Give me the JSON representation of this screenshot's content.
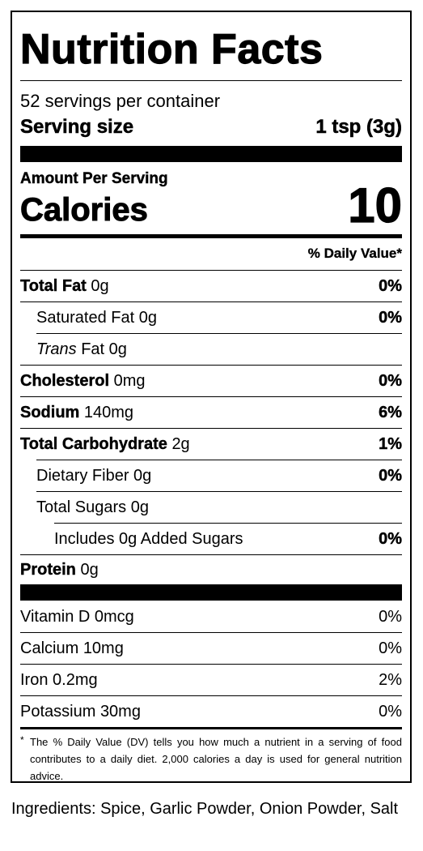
{
  "title": "Nutrition Facts",
  "servings_per_container": "52 servings per container",
  "serving_size_label": "Serving size",
  "serving_size_value": "1 tsp (3g)",
  "amount_per_serving": "Amount Per Serving",
  "calories_label": "Calories",
  "calories_value": "10",
  "daily_value_header": "% Daily Value*",
  "nutrients": [
    {
      "name": "Total Fat",
      "amount": "0g",
      "dv": "0%"
    },
    {
      "name": "Saturated Fat",
      "amount": "0g",
      "dv": "0%"
    },
    {
      "name": "Trans",
      "name_suffix": "Fat",
      "amount": "0g",
      "dv": ""
    },
    {
      "name": "Cholesterol",
      "amount": "0mg",
      "dv": "0%"
    },
    {
      "name": "Sodium",
      "amount": "140mg",
      "dv": "6%"
    },
    {
      "name": "Total Carbohydrate",
      "amount": "2g",
      "dv": "1%"
    },
    {
      "name": "Dietary Fiber",
      "amount": "0g",
      "dv": "0%"
    },
    {
      "name": "Total Sugars",
      "amount": "0g",
      "dv": ""
    },
    {
      "name": "Includes 0g Added Sugars",
      "amount": "",
      "dv": "0%"
    },
    {
      "name": "Protein",
      "amount": "0g",
      "dv": ""
    }
  ],
  "vitamins": [
    {
      "name": "Vitamin D",
      "amount": "0mcg",
      "dv": "0%"
    },
    {
      "name": "Calcium",
      "amount": "10mg",
      "dv": "0%"
    },
    {
      "name": "Iron",
      "amount": "0.2mg",
      "dv": "2%"
    },
    {
      "name": "Potassium",
      "amount": "30mg",
      "dv": "0%"
    }
  ],
  "footnote_star": "*",
  "footnote": "The % Daily Value (DV) tells you how much a nutrient in a serving of food contributes to a daily diet. 2,000 calories a day is used for general nutrition advice.",
  "ingredients": "Ingredients: Spice, Garlic Powder, Onion Powder, Salt"
}
